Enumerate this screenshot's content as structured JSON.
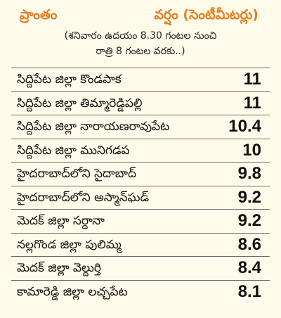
{
  "header": {
    "region_label": "ప్రాంతం",
    "rain_label": "వర్షం (సెంటీమీటర్లు)"
  },
  "subtitle": {
    "line1": "(శనివారం ఉదయం 8.30 గంటల నుంచి",
    "line2": "రాత్రి 8 గంటల వరకు..)"
  },
  "rows": [
    {
      "place": "సిద్దిపేట జిల్లా కొండపాక",
      "value": "11"
    },
    {
      "place": "సిద్దిపేట జిల్లా తిమ్మారెడ్డిపల్లి",
      "value": "11"
    },
    {
      "place": "సిద్దిపేట జిల్లా నారాయణరావుపేట",
      "value": "10.4"
    },
    {
      "place": "సిద్దిపేట జిల్లా మునిగడప",
      "value": "10"
    },
    {
      "place": "హైదరాబాద్‌లోని సైదాబాద్",
      "value": "9.8"
    },
    {
      "place": "హైదరాబాద్‌లోని అస్మాన్‌ఘడ్",
      "value": "9.2"
    },
    {
      "place": "మెదక్ జిల్లా సర్దానా",
      "value": "9.2"
    },
    {
      "place": "నల్లగొండ జిల్లా పులిమ్మ",
      "value": "8.6"
    },
    {
      "place": "మెదక్ జిల్లా వెల్దుర్తి",
      "value": "8.4"
    },
    {
      "place": "కామారెడ్డి జిల్లా లచ్చపేట",
      "value": "8.1"
    }
  ]
}
